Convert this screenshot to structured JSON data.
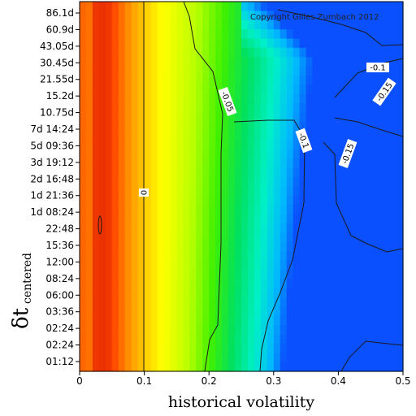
{
  "chart_data": {
    "type": "heatmap",
    "title": "",
    "xlabel": "historical volatility",
    "ylabel": "δt",
    "ylabel_subscript": "centered",
    "copyright": "Copyright Gilles Zumbach 2012",
    "xlim": [
      0,
      0.5
    ],
    "x_ticks": [
      "0",
      "0.1",
      "0.2",
      "0.3",
      "0.4",
      "0.5"
    ],
    "x_tick_values": [
      0,
      0.1,
      0.2,
      0.3,
      0.4,
      0.5
    ],
    "y_tick_labels": [
      "01:12",
      "02:24",
      "02:24",
      "03:36",
      "06:00",
      "08:24",
      "12:00",
      "15:36",
      "22:48",
      "1d 08:24",
      "1d 21:36",
      "2d 16:48",
      "3d 19:12",
      "5d 09:36",
      "7d 14:24",
      "10.75d",
      "15.2d",
      "21.55d",
      "30.45d",
      "43.05d",
      "60.9d",
      "86.1d"
    ],
    "colorscale": [
      "#d81e05",
      "#ff7f00",
      "#ffd700",
      "#ffff00",
      "#ccff00",
      "#00ff00",
      "#00ffcc",
      "#00c8ff",
      "#0050ff"
    ],
    "contour_levels": [
      "0",
      "-0.05",
      "-0.1",
      "-0.15"
    ],
    "grid": false
  }
}
